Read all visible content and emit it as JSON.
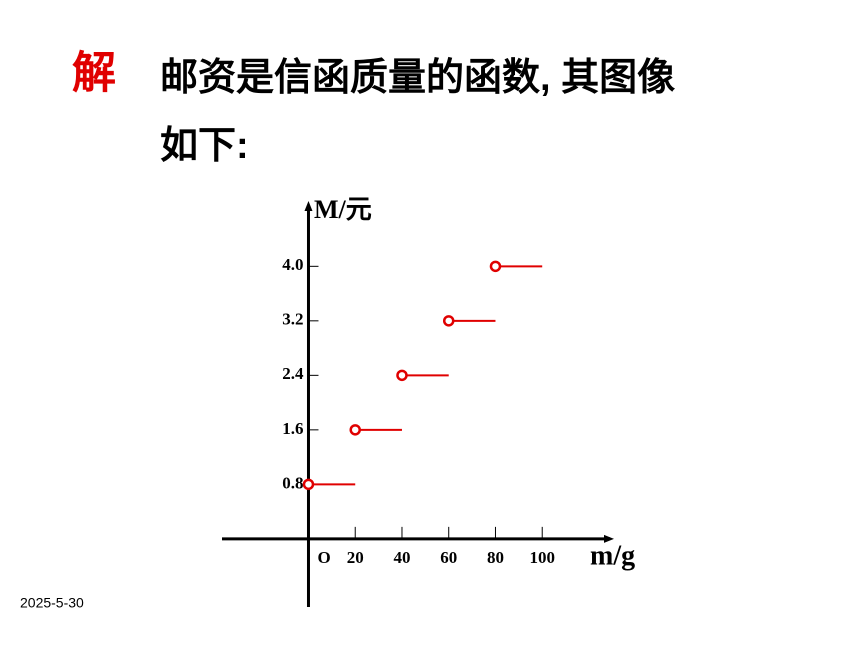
{
  "slide": {
    "label": "解",
    "text_lines": [
      "邮资是信函质量的函数, 其图像",
      "如下:"
    ],
    "date": "2025-5-30"
  },
  "chart_data": {
    "type": "step",
    "y_label": "M/元",
    "x_label": "m/g",
    "origin_label": "O",
    "x": [
      0,
      20,
      40,
      60,
      80
    ],
    "x_end": [
      20,
      40,
      60,
      80,
      100
    ],
    "series": [
      {
        "color": "#e00000",
        "values": [
          0.8,
          1.6,
          2.4,
          3.2,
          4.0
        ]
      }
    ],
    "xlim": [
      -37,
      129
    ],
    "ylim": [
      -1,
      4.9
    ],
    "xticks": [
      20,
      40,
      60,
      80,
      100
    ],
    "yticks": [
      0.8,
      1.6,
      2.4,
      3.2,
      {
        "value": 4,
        "label": "4.0"
      }
    ]
  }
}
